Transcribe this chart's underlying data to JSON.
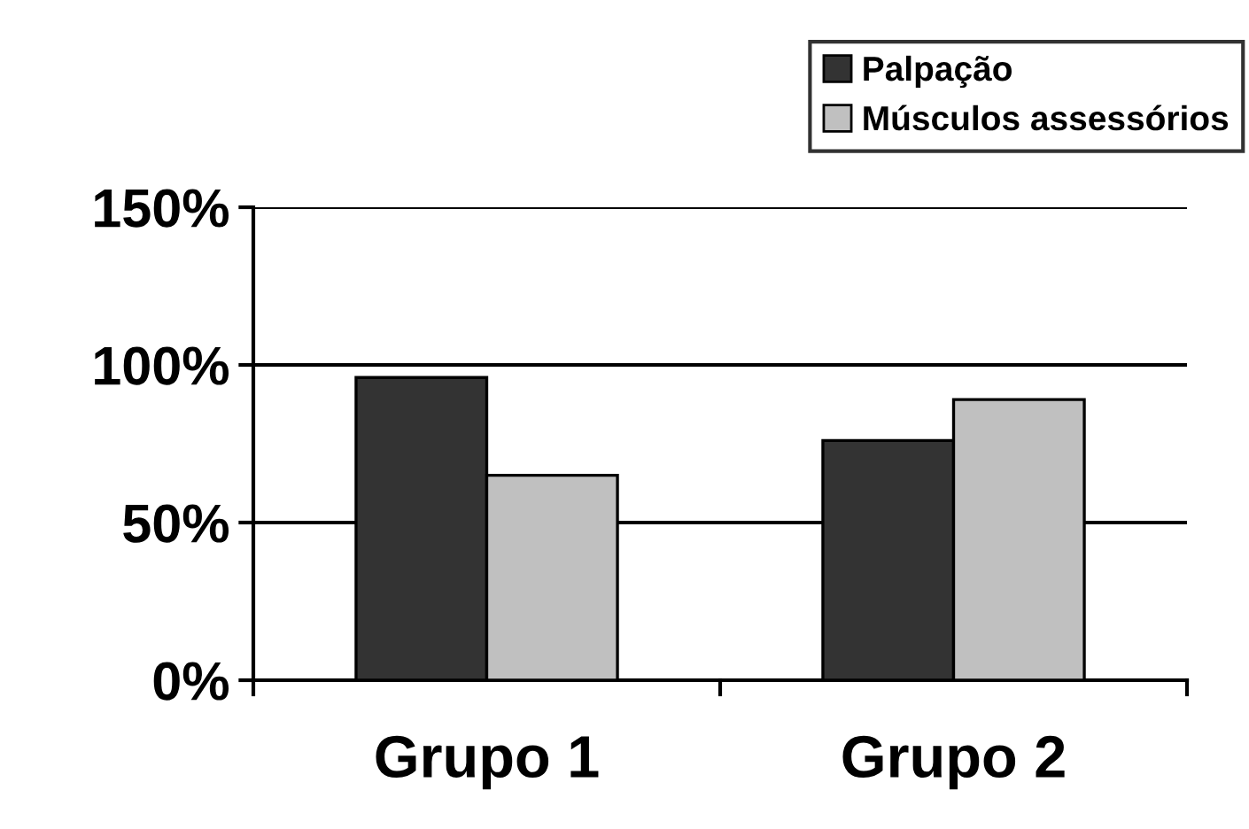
{
  "chart_data": {
    "type": "bar",
    "categories": [
      "Grupo 1",
      "Grupo 2"
    ],
    "series": [
      {
        "name": "Palpação",
        "color": "#333333",
        "values": [
          96,
          76
        ]
      },
      {
        "name": "Músculos assessórios",
        "color": "#c0c0c0",
        "values": [
          65,
          89
        ]
      }
    ],
    "ylim": [
      0,
      150
    ],
    "yticks": [
      {
        "value": 0,
        "label": "0%"
      },
      {
        "value": 50,
        "label": "50%"
      },
      {
        "value": 100,
        "label": "100%"
      },
      {
        "value": 150,
        "label": "150%"
      }
    ],
    "grid": "y",
    "legend": "top right"
  }
}
